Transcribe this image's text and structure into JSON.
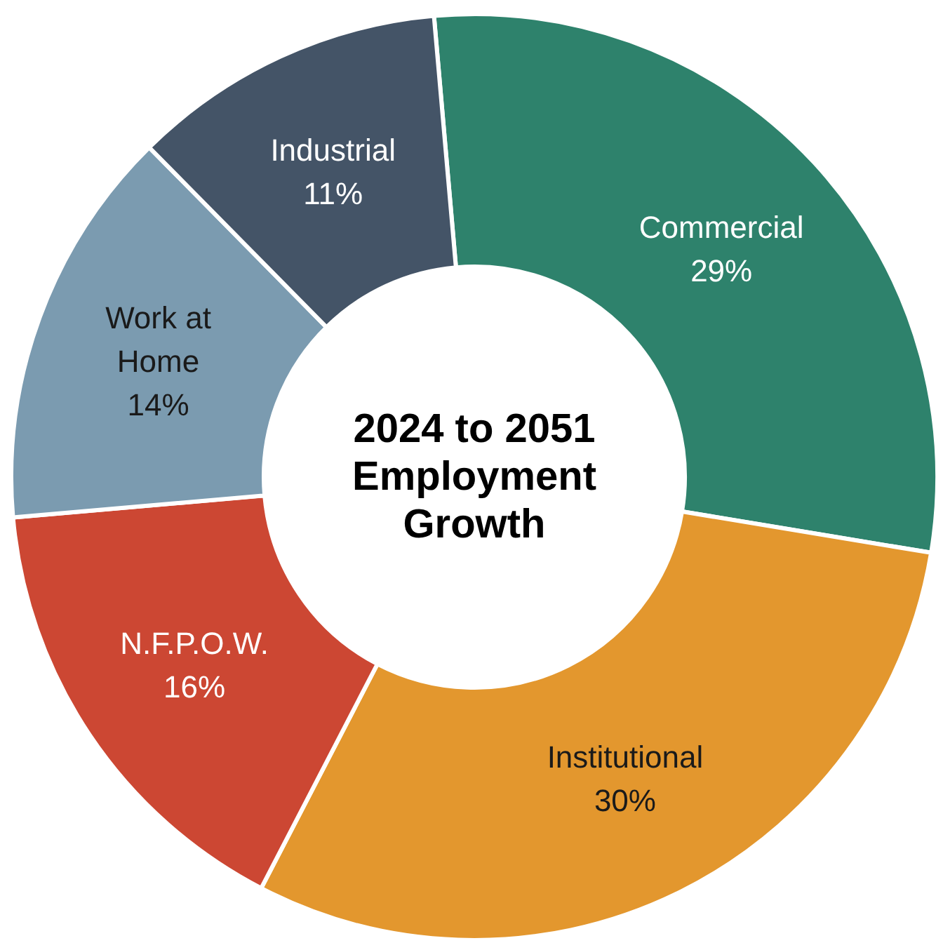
{
  "chart_data": {
    "type": "donut",
    "title": "2024 to 2051 Employment Growth",
    "categories": [
      "Commercial",
      "Institutional",
      "N.F.P.O.W.",
      "Work at Home",
      "Industrial"
    ],
    "values": [
      29,
      30,
      16,
      14,
      11
    ],
    "value_labels": [
      "29%",
      "30%",
      "16%",
      "14%",
      "11%"
    ],
    "colors": [
      "#2e826c",
      "#e3972e",
      "#cc4733",
      "#7b9bb0",
      "#445467"
    ],
    "legend": false
  }
}
